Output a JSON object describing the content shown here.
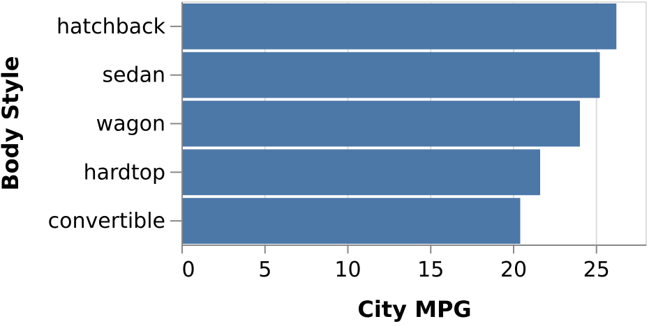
{
  "chart_data": {
    "type": "bar",
    "orientation": "horizontal",
    "categories": [
      "hatchback",
      "sedan",
      "wagon",
      "hardtop",
      "convertible"
    ],
    "values": [
      26.2,
      25.2,
      24.0,
      21.6,
      20.4
    ],
    "xlabel": "City MPG",
    "ylabel": "Body Style",
    "xlim": [
      0,
      28
    ],
    "xticks": [
      0,
      5,
      10,
      15,
      20,
      25
    ],
    "grid": true,
    "bar_color": "#4c78a8",
    "grid_color": "#dddddd",
    "axis_color": "#888888"
  }
}
